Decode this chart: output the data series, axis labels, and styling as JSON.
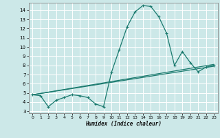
{
  "xlabel": "Humidex (Indice chaleur)",
  "xlim": [
    -0.5,
    23.5
  ],
  "ylim": [
    2.8,
    14.8
  ],
  "yticks": [
    3,
    4,
    5,
    6,
    7,
    8,
    9,
    10,
    11,
    12,
    13,
    14
  ],
  "xticks": [
    0,
    1,
    2,
    3,
    4,
    5,
    6,
    7,
    8,
    9,
    10,
    11,
    12,
    13,
    14,
    15,
    16,
    17,
    18,
    19,
    20,
    21,
    22,
    23
  ],
  "bg_color": "#cce8e8",
  "grid_color": "#ffffff",
  "line_color": "#1a7a6e",
  "curve1_x": [
    0,
    1,
    2,
    3,
    4,
    5,
    6,
    7,
    8,
    9,
    10,
    11,
    12,
    13,
    14,
    15,
    16,
    17,
    18,
    19,
    20,
    21,
    22,
    23
  ],
  "curve1_y": [
    4.8,
    4.7,
    3.5,
    4.2,
    4.5,
    4.8,
    4.7,
    4.5,
    3.8,
    3.5,
    7.2,
    9.7,
    12.2,
    13.8,
    14.5,
    14.4,
    13.3,
    11.5,
    8.0,
    9.5,
    8.3,
    7.3,
    7.8,
    8.0
  ],
  "line2_x": [
    0,
    23
  ],
  "line2_y": [
    4.8,
    7.9
  ],
  "line3_x": [
    0,
    23
  ],
  "line3_y": [
    4.8,
    8.1
  ]
}
